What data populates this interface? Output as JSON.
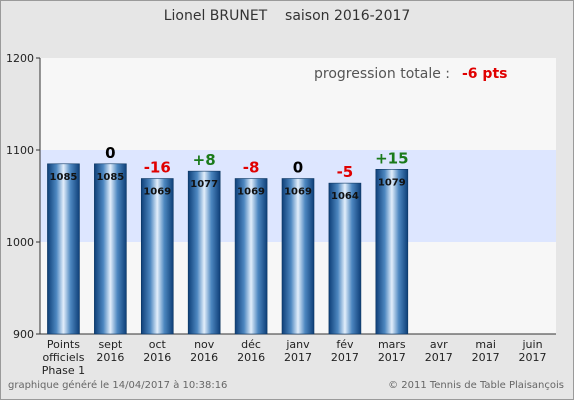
{
  "header": {
    "title": "Lionel BRUNET    saison 2016-2017"
  },
  "footer": {
    "generated": "graphique généré le 14/04/2017 à 10:38:16",
    "copyright": "© 2011 Tennis de Table Plaisançois"
  },
  "summary": {
    "label": "progression totale :",
    "value": "-6 pts"
  },
  "colors": {
    "positive": "#1a7a1a",
    "negative": "#e00000",
    "neutral": "#000000",
    "band": "#dde6ff",
    "plot_bg": "#f7f7f7"
  },
  "chart_data": {
    "type": "bar",
    "title": "Lionel BRUNET    saison 2016-2017",
    "categories": [
      [
        "Points",
        "officiels",
        "Phase 1"
      ],
      [
        "sept",
        "2016"
      ],
      [
        "oct",
        "2016"
      ],
      [
        "nov",
        "2016"
      ],
      [
        "déc",
        "2016"
      ],
      [
        "janv",
        "2017"
      ],
      [
        "fév",
        "2017"
      ],
      [
        "mars",
        "2017"
      ],
      [
        "avr",
        "2017"
      ],
      [
        "mai",
        "2017"
      ],
      [
        "juin",
        "2017"
      ]
    ],
    "values": [
      1085,
      1085,
      1069,
      1077,
      1069,
      1069,
      1064,
      1079,
      null,
      null,
      null
    ],
    "deltas": [
      null,
      "0",
      "-16",
      "+8",
      "-8",
      "0",
      "-5",
      "+15",
      null,
      null,
      null
    ],
    "yticks": [
      900,
      1000,
      1100,
      1200
    ],
    "ylim": [
      900,
      1200
    ],
    "band": [
      1000,
      1100
    ],
    "grid": false
  }
}
